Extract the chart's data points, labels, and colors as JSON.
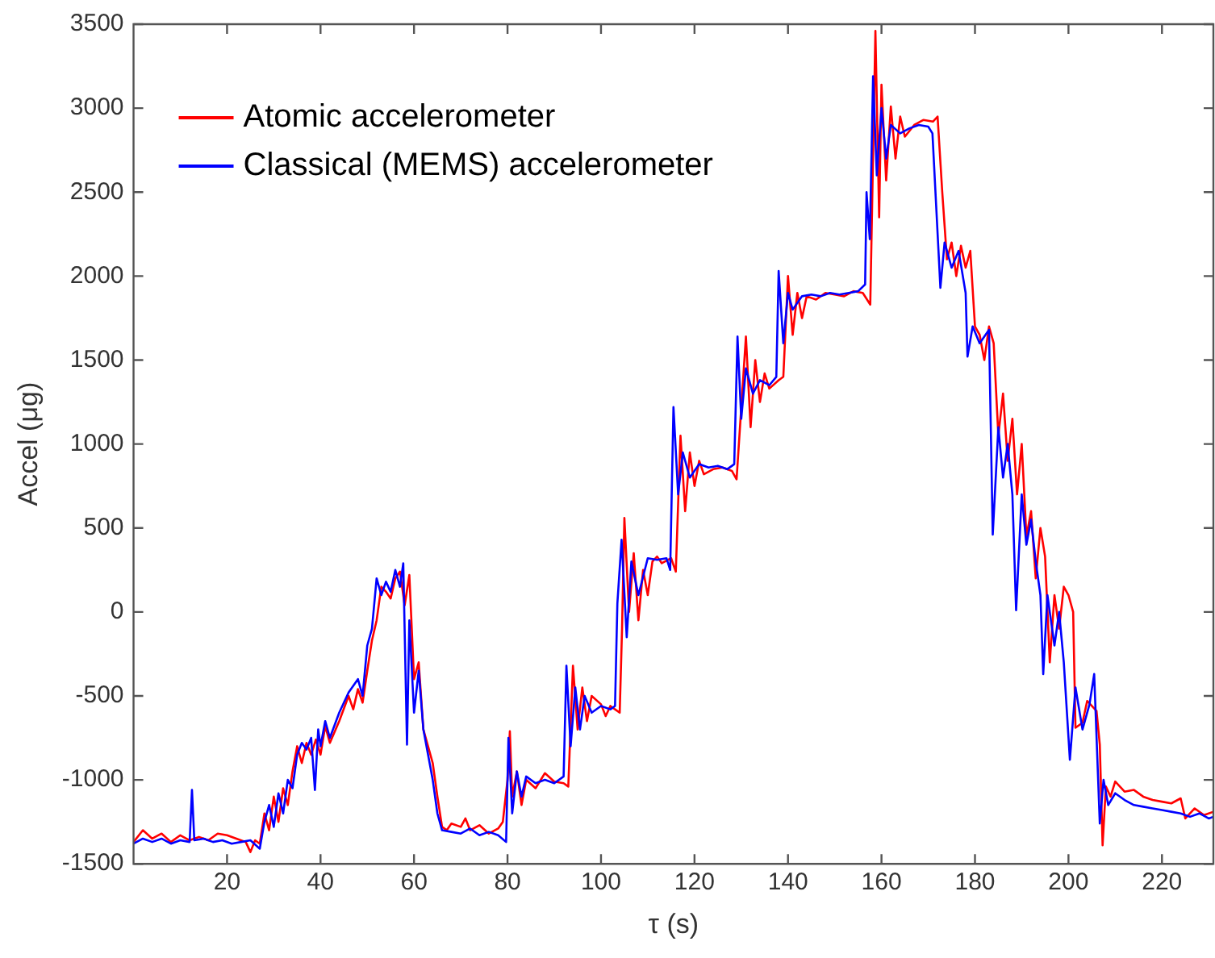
{
  "chart_data": {
    "type": "line",
    "xlabel": "τ (s)",
    "ylabel": "Accel (μg)",
    "xlim": [
      0,
      231
    ],
    "xticks": [
      20,
      40,
      60,
      80,
      100,
      120,
      140,
      160,
      180,
      200,
      220
    ],
    "ylim": [
      -1500,
      3500
    ],
    "yticks": [
      -1500,
      -1000,
      -500,
      0,
      500,
      1000,
      1500,
      2000,
      2500,
      3000,
      3500
    ],
    "grid": false,
    "legend": "top left",
    "marker": "none",
    "line_style": "solid",
    "series": [
      {
        "name": "Classical (MEMS) accelerometer",
        "color": "#0000ff",
        "x": [
          0,
          2,
          4,
          6,
          8,
          10,
          12,
          12.5,
          13,
          15,
          17,
          19,
          21,
          23,
          25,
          27,
          28,
          29,
          30,
          31,
          32,
          33,
          34,
          35,
          36,
          37,
          38,
          38.8,
          39.5,
          40,
          41,
          42,
          44,
          46,
          48,
          49,
          50,
          51,
          52,
          53,
          54,
          55,
          56,
          57,
          57.7,
          58.5,
          59,
          60,
          61,
          62,
          63,
          64,
          65,
          66,
          68,
          70,
          72,
          74,
          76,
          78,
          79.7,
          80.2,
          81,
          82,
          83,
          84,
          86,
          88,
          90,
          92,
          92.6,
          93.5,
          94.5,
          95.5,
          96.5,
          98,
          100,
          102,
          103,
          103.5,
          104.4,
          105.5,
          106.5,
          108,
          110,
          112,
          114,
          114.8,
          115.5,
          116.5,
          117.5,
          119,
          121,
          123,
          125,
          127,
          128.5,
          129.2,
          130,
          131,
          132.5,
          134,
          136,
          137.5,
          138,
          139,
          140,
          141,
          143,
          145,
          147,
          149,
          151,
          153,
          155,
          156.5,
          156.8,
          157.5,
          158.2,
          159,
          160,
          161,
          162,
          164,
          166,
          168,
          170,
          170.9,
          172.6,
          173.5,
          175,
          176.5,
          178,
          178.4,
          179.5,
          181,
          183,
          183.8,
          185,
          186,
          187,
          188,
          188.8,
          190,
          191,
          192,
          193,
          194,
          194.6,
          195.5,
          197,
          198,
          199,
          200.3,
          201.5,
          203,
          204.5,
          205.5,
          206.7,
          207.5,
          208.5,
          210,
          212,
          214,
          216,
          218,
          220,
          222,
          224,
          226,
          228,
          230,
          231
        ],
        "values": [
          -1380,
          -1350,
          -1370,
          -1350,
          -1380,
          -1360,
          -1370,
          -1060,
          -1360,
          -1350,
          -1370,
          -1360,
          -1380,
          -1370,
          -1360,
          -1410,
          -1250,
          -1150,
          -1280,
          -1080,
          -1200,
          -1000,
          -1050,
          -850,
          -780,
          -820,
          -750,
          -1060,
          -700,
          -800,
          -650,
          -750,
          -600,
          -480,
          -400,
          -500,
          -200,
          -100,
          200,
          100,
          180,
          120,
          250,
          150,
          290,
          -790,
          -50,
          -600,
          -350,
          -700,
          -850,
          -1000,
          -1200,
          -1300,
          -1310,
          -1320,
          -1290,
          -1330,
          -1310,
          -1330,
          -1370,
          -750,
          -1200,
          -950,
          -1100,
          -980,
          -1020,
          -1000,
          -1020,
          -980,
          -320,
          -800,
          -450,
          -700,
          -500,
          -600,
          -560,
          -580,
          -560,
          50,
          430,
          -150,
          300,
          100,
          320,
          310,
          320,
          250,
          1220,
          700,
          950,
          800,
          880,
          860,
          870,
          850,
          880,
          1640,
          1150,
          1450,
          1300,
          1380,
          1350,
          1400,
          2030,
          1600,
          1900,
          1800,
          1880,
          1890,
          1880,
          1900,
          1890,
          1900,
          1910,
          1950,
          2500,
          2220,
          3190,
          2600,
          3000,
          2700,
          2900,
          2850,
          2880,
          2900,
          2890,
          2850,
          1930,
          2200,
          2050,
          2150,
          1900,
          1520,
          1700,
          1600,
          1680,
          460,
          1100,
          800,
          1000,
          700,
          10,
          700,
          400,
          550,
          300,
          100,
          -370,
          100,
          -200,
          0,
          -300,
          -880,
          -450,
          -700,
          -550,
          -370,
          -1260,
          -1000,
          -1150,
          -1080,
          -1120,
          -1150,
          -1160,
          -1170,
          -1180,
          -1190,
          -1200,
          -1220,
          -1200,
          -1230,
          -1220
        ]
      },
      {
        "name": "Atomic accelerometer",
        "color": "#ff0000",
        "x": [
          0,
          2,
          4,
          6,
          8,
          10,
          12,
          14,
          16,
          18,
          20,
          22,
          24,
          25,
          26,
          27,
          28,
          29,
          30,
          31,
          32,
          33,
          34,
          35,
          36,
          37,
          38,
          39,
          40,
          41,
          42,
          44,
          46,
          47,
          48,
          49,
          50,
          51,
          52,
          53,
          54,
          55,
          56,
          57,
          58,
          59,
          60,
          61,
          62,
          63,
          64,
          65,
          66,
          67,
          68,
          70,
          71,
          72,
          74,
          76,
          78,
          79,
          80,
          80.5,
          81,
          82,
          83,
          84,
          86,
          88,
          90,
          92,
          93,
          94,
          95,
          96,
          97,
          98,
          100,
          101,
          102,
          104,
          104.5,
          105,
          106,
          107,
          108,
          109,
          110,
          111,
          112,
          113,
          115,
          116,
          117,
          118,
          119,
          120,
          121,
          122,
          124,
          126,
          128,
          129,
          131,
          132,
          133,
          134,
          135,
          136,
          138,
          139,
          140,
          141,
          142,
          143,
          144,
          146,
          148,
          150,
          152,
          154,
          156,
          157.6,
          158.7,
          159.5,
          160,
          161,
          162,
          163,
          164,
          165,
          167,
          169,
          171,
          172,
          173,
          174,
          175,
          176,
          177,
          178,
          179,
          180,
          181,
          182,
          183,
          184,
          185,
          186,
          187,
          188,
          189,
          190,
          191,
          192,
          193,
          194,
          195,
          196,
          197,
          198,
          199,
          200,
          201,
          201.5,
          203,
          204,
          206,
          206.7,
          207.3,
          208,
          209,
          210,
          212,
          214,
          216,
          218,
          220,
          222,
          224,
          225,
          227,
          229,
          231
        ],
        "values": [
          -1370,
          -1300,
          -1350,
          -1320,
          -1370,
          -1330,
          -1360,
          -1340,
          -1360,
          -1320,
          -1330,
          -1350,
          -1370,
          -1430,
          -1360,
          -1380,
          -1200,
          -1300,
          -1100,
          -1250,
          -1050,
          -1150,
          -950,
          -800,
          -900,
          -780,
          -850,
          -760,
          -850,
          -680,
          -780,
          -650,
          -500,
          -580,
          -460,
          -540,
          -350,
          -170,
          -50,
          150,
          120,
          80,
          200,
          240,
          40,
          220,
          -400,
          -300,
          -700,
          -800,
          -900,
          -1100,
          -1280,
          -1300,
          -1260,
          -1280,
          -1230,
          -1300,
          -1270,
          -1320,
          -1290,
          -1250,
          -1000,
          -710,
          -1100,
          -950,
          -1150,
          -1000,
          -1050,
          -960,
          -1010,
          -1020,
          -1040,
          -320,
          -700,
          -450,
          -650,
          -500,
          -550,
          -620,
          -560,
          -600,
          -100,
          560,
          0,
          350,
          -50,
          250,
          100,
          300,
          330,
          290,
          320,
          240,
          1050,
          600,
          950,
          750,
          900,
          820,
          850,
          860,
          840,
          790,
          1640,
          1100,
          1500,
          1250,
          1420,
          1330,
          1380,
          1400,
          2000,
          1650,
          1900,
          1750,
          1880,
          1860,
          1900,
          1890,
          1880,
          1910,
          1900,
          1830,
          3460,
          2350,
          3140,
          2570,
          3010,
          2700,
          2950,
          2830,
          2900,
          2930,
          2920,
          2950,
          2500,
          2100,
          2200,
          2000,
          2180,
          2050,
          2150,
          1700,
          1650,
          1500,
          1700,
          1600,
          1050,
          1300,
          900,
          1150,
          700,
          1000,
          450,
          600,
          200,
          500,
          330,
          -300,
          100,
          -100,
          150,
          100,
          0,
          -690,
          -660,
          -530,
          -590,
          -790,
          -1390,
          -1040,
          -1100,
          -1010,
          -1070,
          -1060,
          -1100,
          -1120,
          -1130,
          -1140,
          -1110,
          -1230,
          -1170,
          -1210,
          -1190
        ]
      }
    ]
  }
}
